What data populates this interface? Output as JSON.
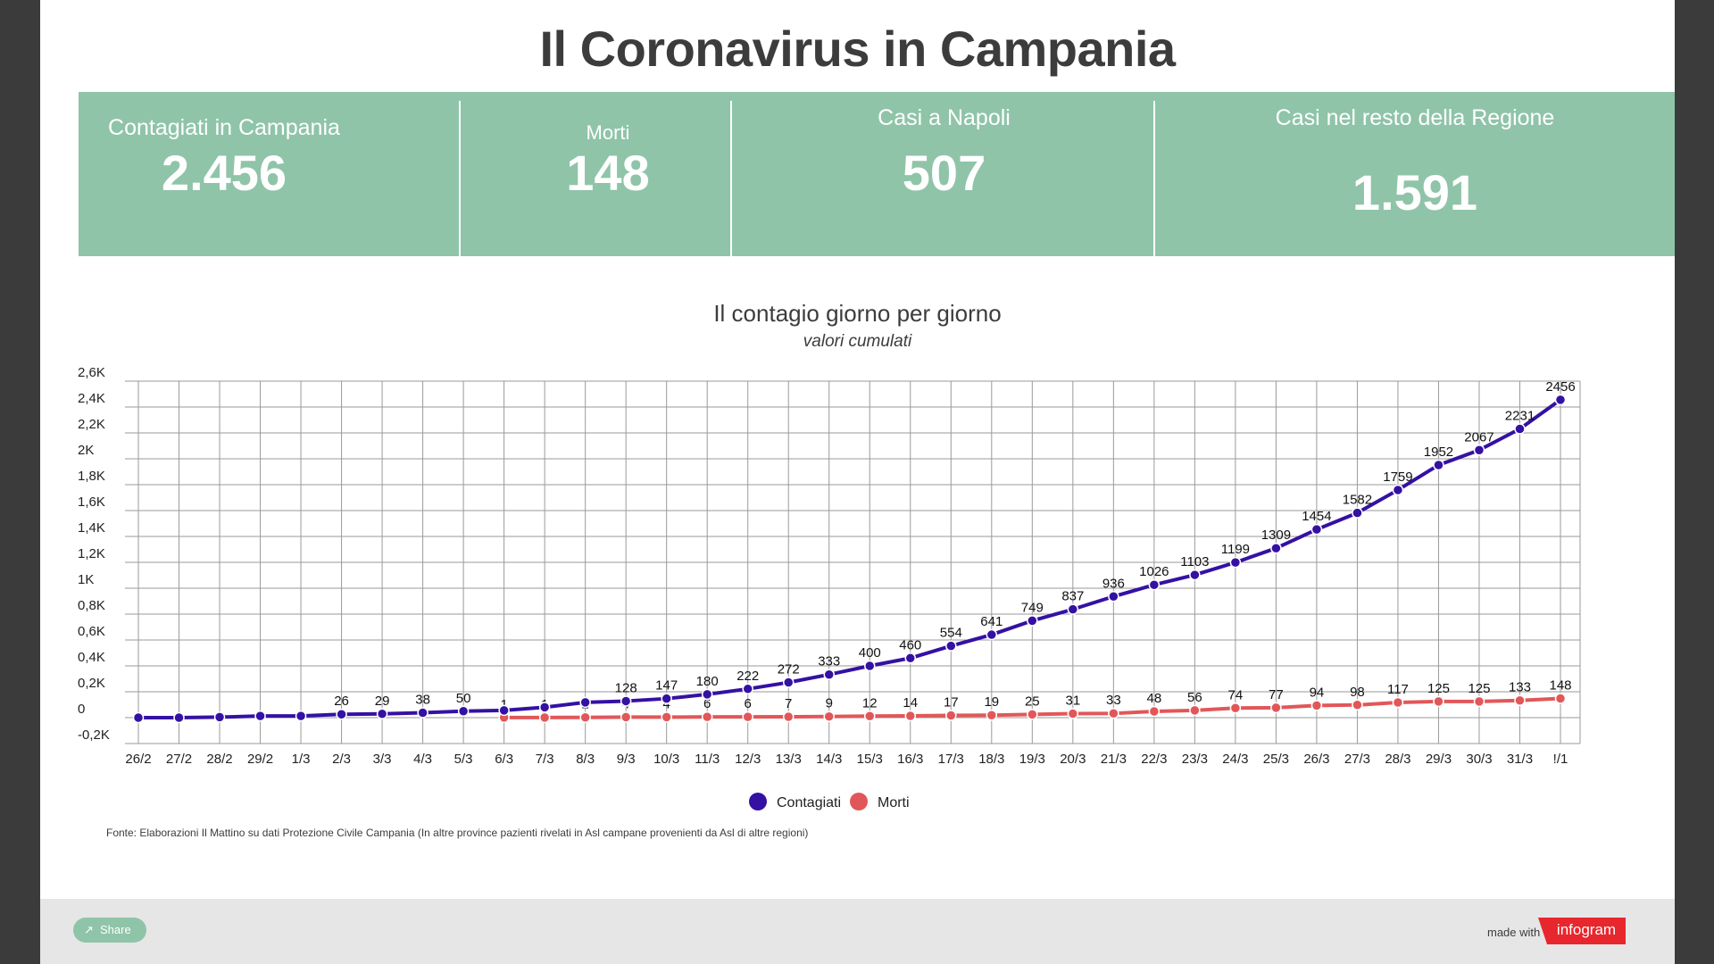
{
  "header": {
    "title": "Il Coronavirus in Campania"
  },
  "kpis": [
    {
      "label": "Contagiati in Campania",
      "value": "2.456"
    },
    {
      "label": "Morti",
      "value": "148"
    },
    {
      "label": "Casi a Napoli",
      "value": "507"
    },
    {
      "label": "Casi nel resto della Regione",
      "value": "1.591"
    }
  ],
  "chart_data": {
    "type": "line",
    "title": "Il contagio giorno per giorno",
    "subtitle": "valori cumulati",
    "xlabel": "",
    "ylabel": "",
    "x": [
      "26/2",
      "27/2",
      "28/2",
      "29/2",
      "1/3",
      "2/3",
      "3/3",
      "4/3",
      "5/3",
      "6/3",
      "7/3",
      "8/3",
      "9/3",
      "10/3",
      "11/3",
      "12/3",
      "13/3",
      "14/3",
      "15/3",
      "16/3",
      "17/3",
      "18/3",
      "19/3",
      "20/3",
      "21/3",
      "22/3",
      "23/3",
      "24/3",
      "25/3",
      "26/3",
      "27/3",
      "28/3",
      "29/3",
      "30/3",
      "31/3",
      "!/1"
    ],
    "ylim": [
      -200,
      2600
    ],
    "y_ticks": [
      {
        "v": 2600,
        "label": "2,6K"
      },
      {
        "v": 2400,
        "label": "2,4K"
      },
      {
        "v": 2200,
        "label": "2,2K"
      },
      {
        "v": 2000,
        "label": "2K"
      },
      {
        "v": 1800,
        "label": "1,8K"
      },
      {
        "v": 1600,
        "label": "1,6K"
      },
      {
        "v": 1400,
        "label": "1,4K"
      },
      {
        "v": 1200,
        "label": "1,2K"
      },
      {
        "v": 1000,
        "label": "1K"
      },
      {
        "v": 800,
        "label": "0,8K"
      },
      {
        "v": 600,
        "label": "0,6K"
      },
      {
        "v": 400,
        "label": "0,4K"
      },
      {
        "v": 200,
        "label": "0,2K"
      },
      {
        "v": 0,
        "label": "0"
      },
      {
        "v": -200,
        "label": "-0,2K"
      }
    ],
    "grid": true,
    "legend_position": "bottom",
    "series": [
      {
        "name": "Contagiati",
        "color": "#3411a3",
        "values": [
          0,
          0,
          4,
          13,
          13,
          26,
          29,
          38,
          50,
          56,
          80,
          118,
          128,
          147,
          180,
          222,
          272,
          333,
          400,
          460,
          554,
          641,
          749,
          837,
          936,
          1026,
          1103,
          1199,
          1309,
          1454,
          1582,
          1759,
          1952,
          2067,
          2231,
          2456
        ],
        "labels": [
          "",
          "",
          "",
          "",
          "",
          "26",
          "29",
          "38",
          "50",
          "",
          "",
          "",
          "128",
          "147",
          "180",
          "222",
          "272",
          "333",
          "400",
          "460",
          "554",
          "641",
          "749",
          "837",
          "936",
          "1026",
          "1103",
          "1199",
          "1309",
          "1454",
          "1582",
          "1759",
          "1952",
          "2067",
          "2231",
          "2456"
        ]
      },
      {
        "name": "Morti",
        "color": "#e15759",
        "values": [
          null,
          null,
          null,
          null,
          null,
          null,
          null,
          null,
          null,
          1,
          1,
          2,
          4,
          4,
          6,
          6,
          7,
          9,
          12,
          14,
          17,
          19,
          25,
          31,
          33,
          48,
          56,
          74,
          77,
          94,
          98,
          117,
          125,
          125,
          133,
          148
        ],
        "labels": [
          "",
          "",
          "",
          "",
          "",
          "",
          "",
          "",
          "",
          "1",
          "1",
          "2",
          "4",
          "4",
          "6",
          "6",
          "7",
          "9",
          "12",
          "14",
          "17",
          "19",
          "25",
          "31",
          "33",
          "48",
          "56",
          "74",
          "77",
          "94",
          "98",
          "117",
          "125",
          "125",
          "133",
          "148"
        ]
      }
    ]
  },
  "source": "Fonte: Elaborazioni Il Mattino su dati Protezione Civile Campania (In altre province pazienti rivelati in Asl campane provenienti da Asl di altre regioni)",
  "footer": {
    "share_label": "Share",
    "made_with": "made with",
    "brand": "infogram"
  }
}
